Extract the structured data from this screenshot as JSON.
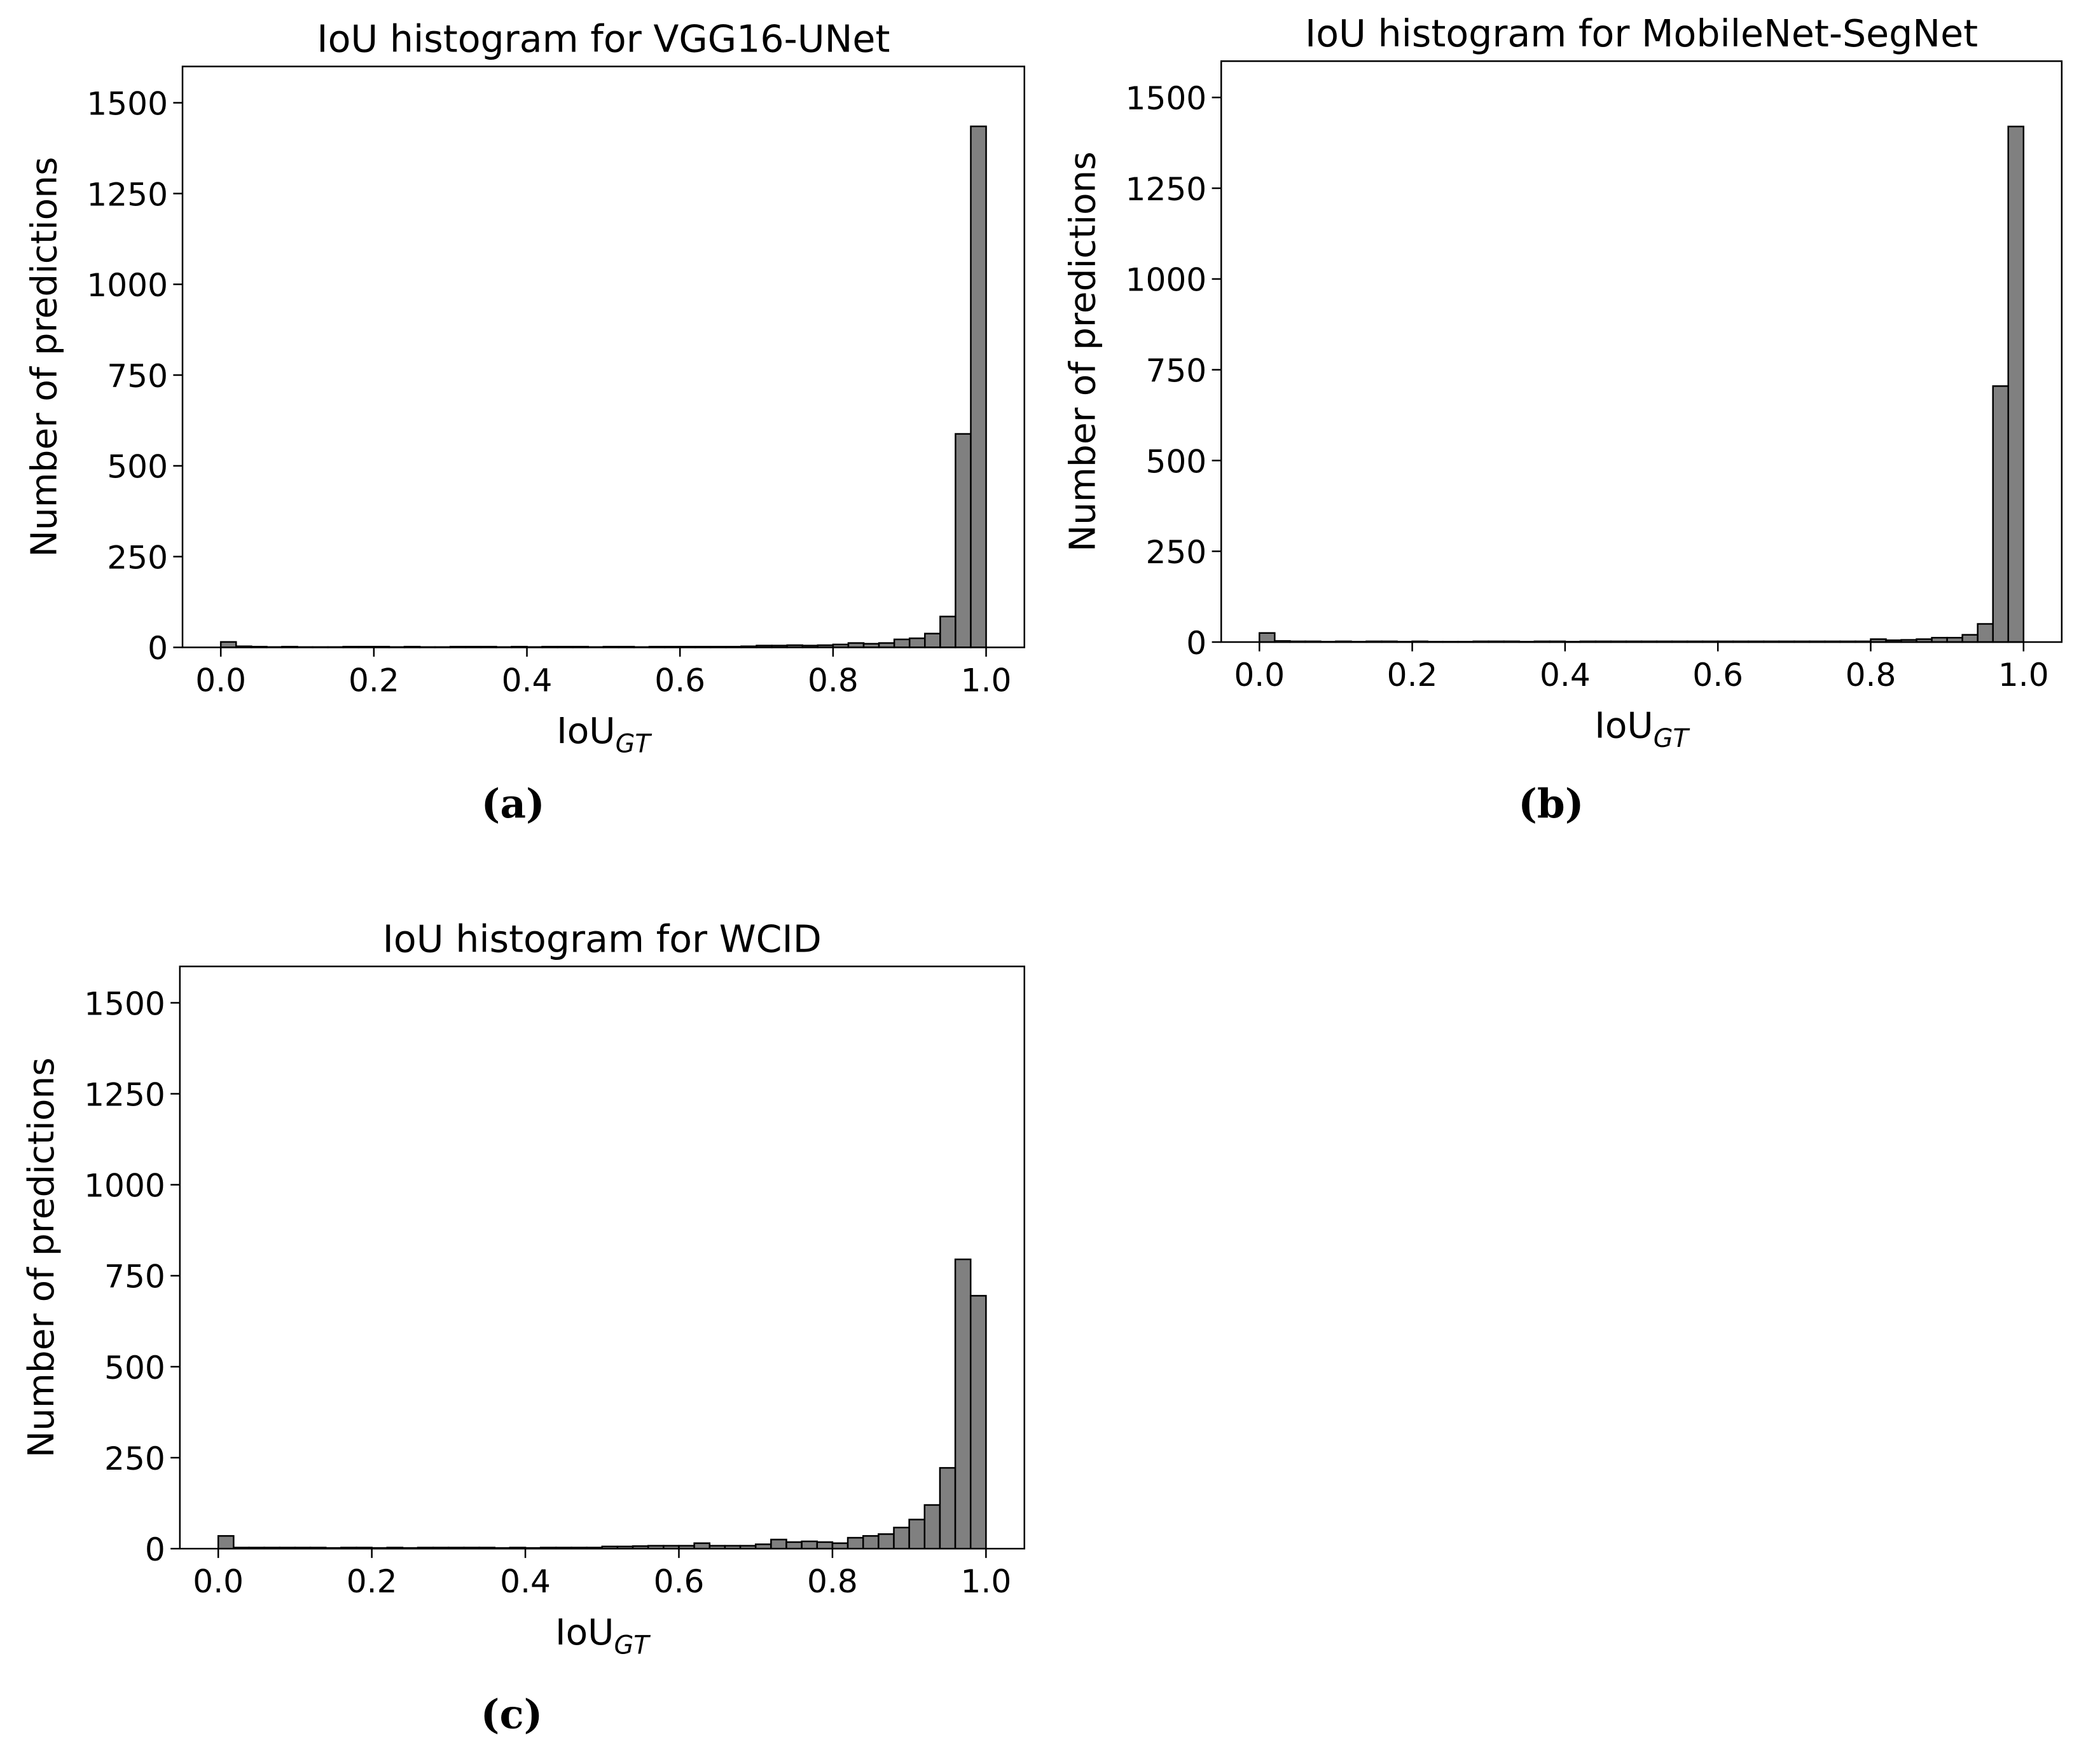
{
  "chart_data": [
    {
      "type": "histogram",
      "title": "IoU histogram for VGG16-UNet",
      "xlabel": "IoU",
      "xlabel_subscript": "GT",
      "ylabel": "Number of predictions",
      "caption": "(a)",
      "color": "#808080",
      "edgecolor": "#000000",
      "bins": [
        0,
        0.02,
        0.04,
        0.06,
        0.08,
        0.1,
        0.12,
        0.14,
        0.16,
        0.18,
        0.2,
        0.22,
        0.24,
        0.26,
        0.28,
        0.3,
        0.32,
        0.34,
        0.36,
        0.38,
        0.4,
        0.42,
        0.44,
        0.46,
        0.48,
        0.5,
        0.52,
        0.54,
        0.56,
        0.58,
        0.6,
        0.62,
        0.64,
        0.66,
        0.68,
        0.7,
        0.72,
        0.74,
        0.76,
        0.78,
        0.8,
        0.82,
        0.84,
        0.86,
        0.88,
        0.9,
        0.92,
        0.94,
        0.96,
        0.98,
        1
      ],
      "counts": [
        15,
        3,
        2,
        1,
        2,
        1,
        1,
        1,
        2,
        2,
        2,
        1,
        2,
        1,
        1,
        2,
        2,
        2,
        1,
        2,
        1,
        2,
        2,
        2,
        1,
        2,
        2,
        1,
        2,
        2,
        2,
        2,
        2,
        2,
        3,
        5,
        5,
        6,
        5,
        6,
        8,
        12,
        10,
        12,
        22,
        25,
        38,
        85,
        588,
        1435
      ],
      "xlim": [
        -0.05,
        1.05
      ],
      "ylim": [
        0,
        1600
      ],
      "xticks": [
        {
          "value": 0,
          "label": "0.0"
        },
        0.2,
        0.4,
        0.6,
        0.8,
        {
          "value": 1,
          "label": "1.0"
        }
      ],
      "yticks": [
        0,
        250,
        500,
        750,
        1000,
        1250,
        1500
      ]
    },
    {
      "type": "histogram",
      "title": "IoU histogram for MobileNet-SegNet",
      "xlabel": "IoU",
      "xlabel_subscript": "GT",
      "ylabel": "Number of predictions",
      "caption": "(b)",
      "color": "#808080",
      "edgecolor": "#000000",
      "bins": [
        0,
        0.02,
        0.04,
        0.06,
        0.08,
        0.1,
        0.12,
        0.14,
        0.16,
        0.18,
        0.2,
        0.22,
        0.24,
        0.26,
        0.28,
        0.3,
        0.32,
        0.34,
        0.36,
        0.38,
        0.4,
        0.42,
        0.44,
        0.46,
        0.48,
        0.5,
        0.52,
        0.54,
        0.56,
        0.58,
        0.6,
        0.62,
        0.64,
        0.66,
        0.68,
        0.7,
        0.72,
        0.74,
        0.76,
        0.78,
        0.8,
        0.82,
        0.84,
        0.86,
        0.88,
        0.9,
        0.92,
        0.94,
        0.96,
        0.98,
        1
      ],
      "counts": [
        25,
        3,
        2,
        2,
        1,
        2,
        1,
        2,
        2,
        1,
        2,
        1,
        1,
        1,
        2,
        2,
        2,
        1,
        2,
        2,
        1,
        2,
        2,
        2,
        2,
        2,
        2,
        2,
        2,
        2,
        2,
        2,
        2,
        2,
        2,
        2,
        2,
        2,
        2,
        2,
        8,
        5,
        6,
        8,
        12,
        12,
        20,
        50,
        705,
        1420
      ],
      "xlim": [
        -0.05,
        1.05
      ],
      "ylim": [
        0,
        1600
      ],
      "xticks": [
        {
          "value": 0,
          "label": "0.0"
        },
        0.2,
        0.4,
        0.6,
        0.8,
        {
          "value": 1,
          "label": "1.0"
        }
      ],
      "yticks": [
        0,
        250,
        500,
        750,
        1000,
        1250,
        1500
      ]
    },
    {
      "type": "histogram",
      "title": "IoU histogram for WCID",
      "xlabel": "IoU",
      "xlabel_subscript": "GT",
      "ylabel": "Number of predictions",
      "caption": "(c)",
      "color": "#808080",
      "edgecolor": "#000000",
      "bins": [
        0,
        0.02,
        0.04,
        0.06,
        0.08,
        0.1,
        0.12,
        0.14,
        0.16,
        0.18,
        0.2,
        0.22,
        0.24,
        0.26,
        0.28,
        0.3,
        0.32,
        0.34,
        0.36,
        0.38,
        0.4,
        0.42,
        0.44,
        0.46,
        0.48,
        0.5,
        0.52,
        0.54,
        0.56,
        0.58,
        0.6,
        0.62,
        0.64,
        0.66,
        0.68,
        0.7,
        0.72,
        0.74,
        0.76,
        0.78,
        0.8,
        0.82,
        0.84,
        0.86,
        0.88,
        0.9,
        0.92,
        0.94,
        0.96,
        0.98,
        1
      ],
      "counts": [
        35,
        3,
        3,
        3,
        3,
        3,
        3,
        2,
        3,
        3,
        2,
        3,
        2,
        3,
        3,
        3,
        3,
        3,
        2,
        3,
        2,
        3,
        3,
        3,
        3,
        6,
        6,
        7,
        8,
        8,
        8,
        15,
        8,
        8,
        8,
        12,
        25,
        18,
        20,
        18,
        15,
        30,
        35,
        40,
        58,
        80,
        120,
        222,
        795,
        695
      ],
      "xlim": [
        -0.05,
        1.05
      ],
      "ylim": [
        0,
        1600
      ],
      "xticks": [
        {
          "value": 0,
          "label": "0.0"
        },
        0.2,
        0.4,
        0.6,
        0.8,
        {
          "value": 1,
          "label": "1.0"
        }
      ],
      "yticks": [
        0,
        250,
        500,
        750,
        1000,
        1250,
        1500
      ]
    }
  ]
}
